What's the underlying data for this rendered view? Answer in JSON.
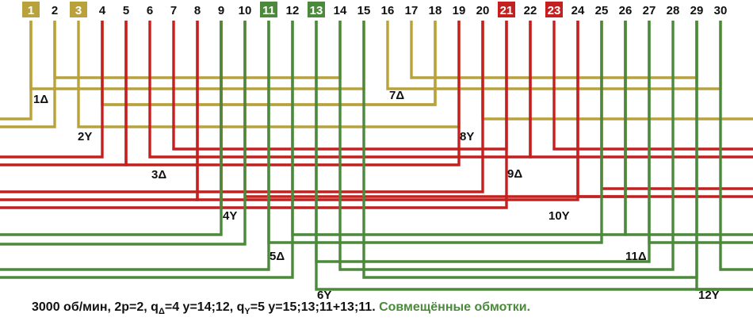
{
  "colors": {
    "gold": "#b9a23c",
    "red": "#c4201f",
    "green": "#4a8a3a",
    "text": "#111111",
    "box_text": "#ffffff"
  },
  "slot_labels": [
    "1",
    "2",
    "3",
    "4",
    "5",
    "6",
    "7",
    "8",
    "9",
    "10",
    "11",
    "12",
    "13",
    "14",
    "15",
    "16",
    "17",
    "18",
    "19",
    "20",
    "21",
    "22",
    "23",
    "24",
    "25",
    "26",
    "27",
    "28",
    "29",
    "30"
  ],
  "highlighted_slots": [
    {
      "slot": 1,
      "color": "gold"
    },
    {
      "slot": 3,
      "color": "gold"
    },
    {
      "slot": 11,
      "color": "green"
    },
    {
      "slot": 13,
      "color": "green"
    },
    {
      "slot": 21,
      "color": "red"
    },
    {
      "slot": 23,
      "color": "red"
    }
  ],
  "lead_labels": [
    "1Δ",
    "2Y",
    "3Δ",
    "4Y",
    "5Δ",
    "6Y",
    "7Δ",
    "8Y",
    "9Δ",
    "10Y",
    "11Δ",
    "12Y"
  ],
  "caption": {
    "p1": "3000 об/мин, 2р=2, q",
    "sub1": "Δ",
    "p2": "=4 у=14;12, q",
    "sub2": "Y",
    "p3": "=5 у=15;13;11+13;11. ",
    "accent": "Совмещённые обмотки."
  }
}
